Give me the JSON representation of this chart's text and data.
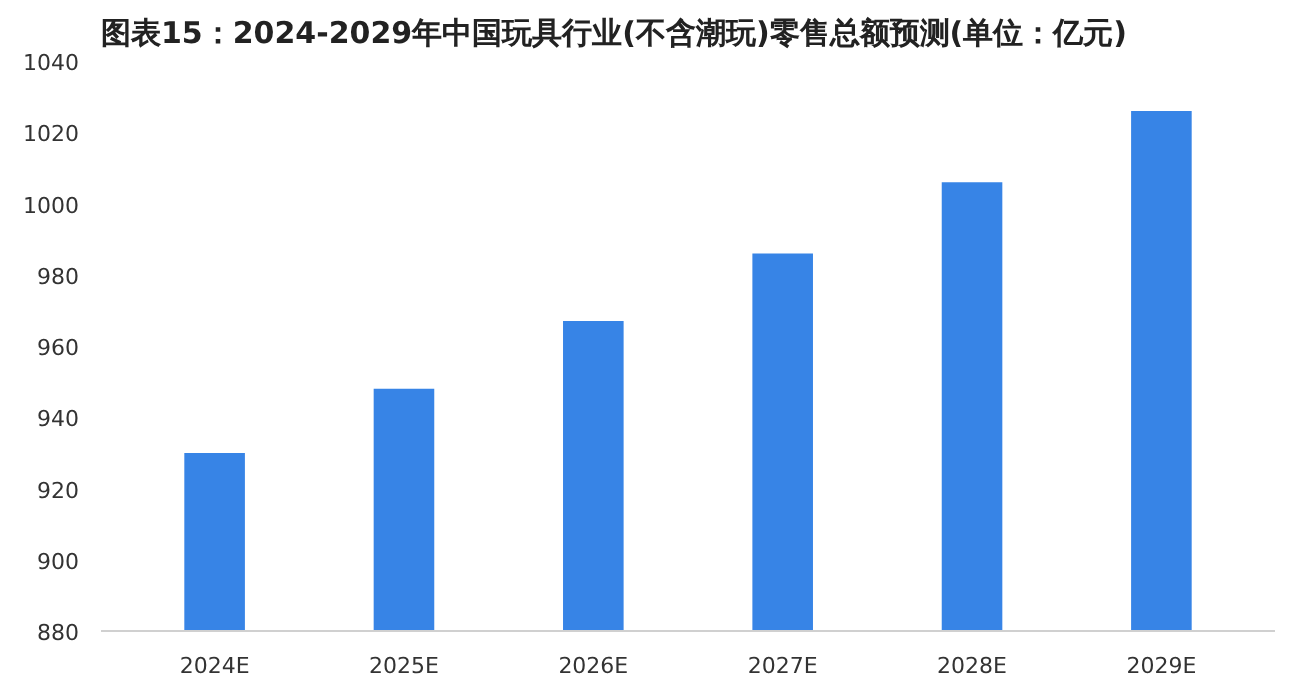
{
  "chart_data": {
    "type": "bar",
    "title": "图表15：2024-2029年中国玩具行业(不含潮玩)零售总额预测(单位：亿元)",
    "categories": [
      "2024E",
      "2025E",
      "2026E",
      "2027E",
      "2028E",
      "2029E"
    ],
    "values": [
      930,
      948,
      967,
      986,
      1006,
      1026
    ],
    "color": "#3784e6",
    "ylim": [
      880,
      1040
    ],
    "yticks": [
      880,
      900,
      920,
      940,
      960,
      980,
      1000,
      1020,
      1040
    ],
    "grid": false
  }
}
